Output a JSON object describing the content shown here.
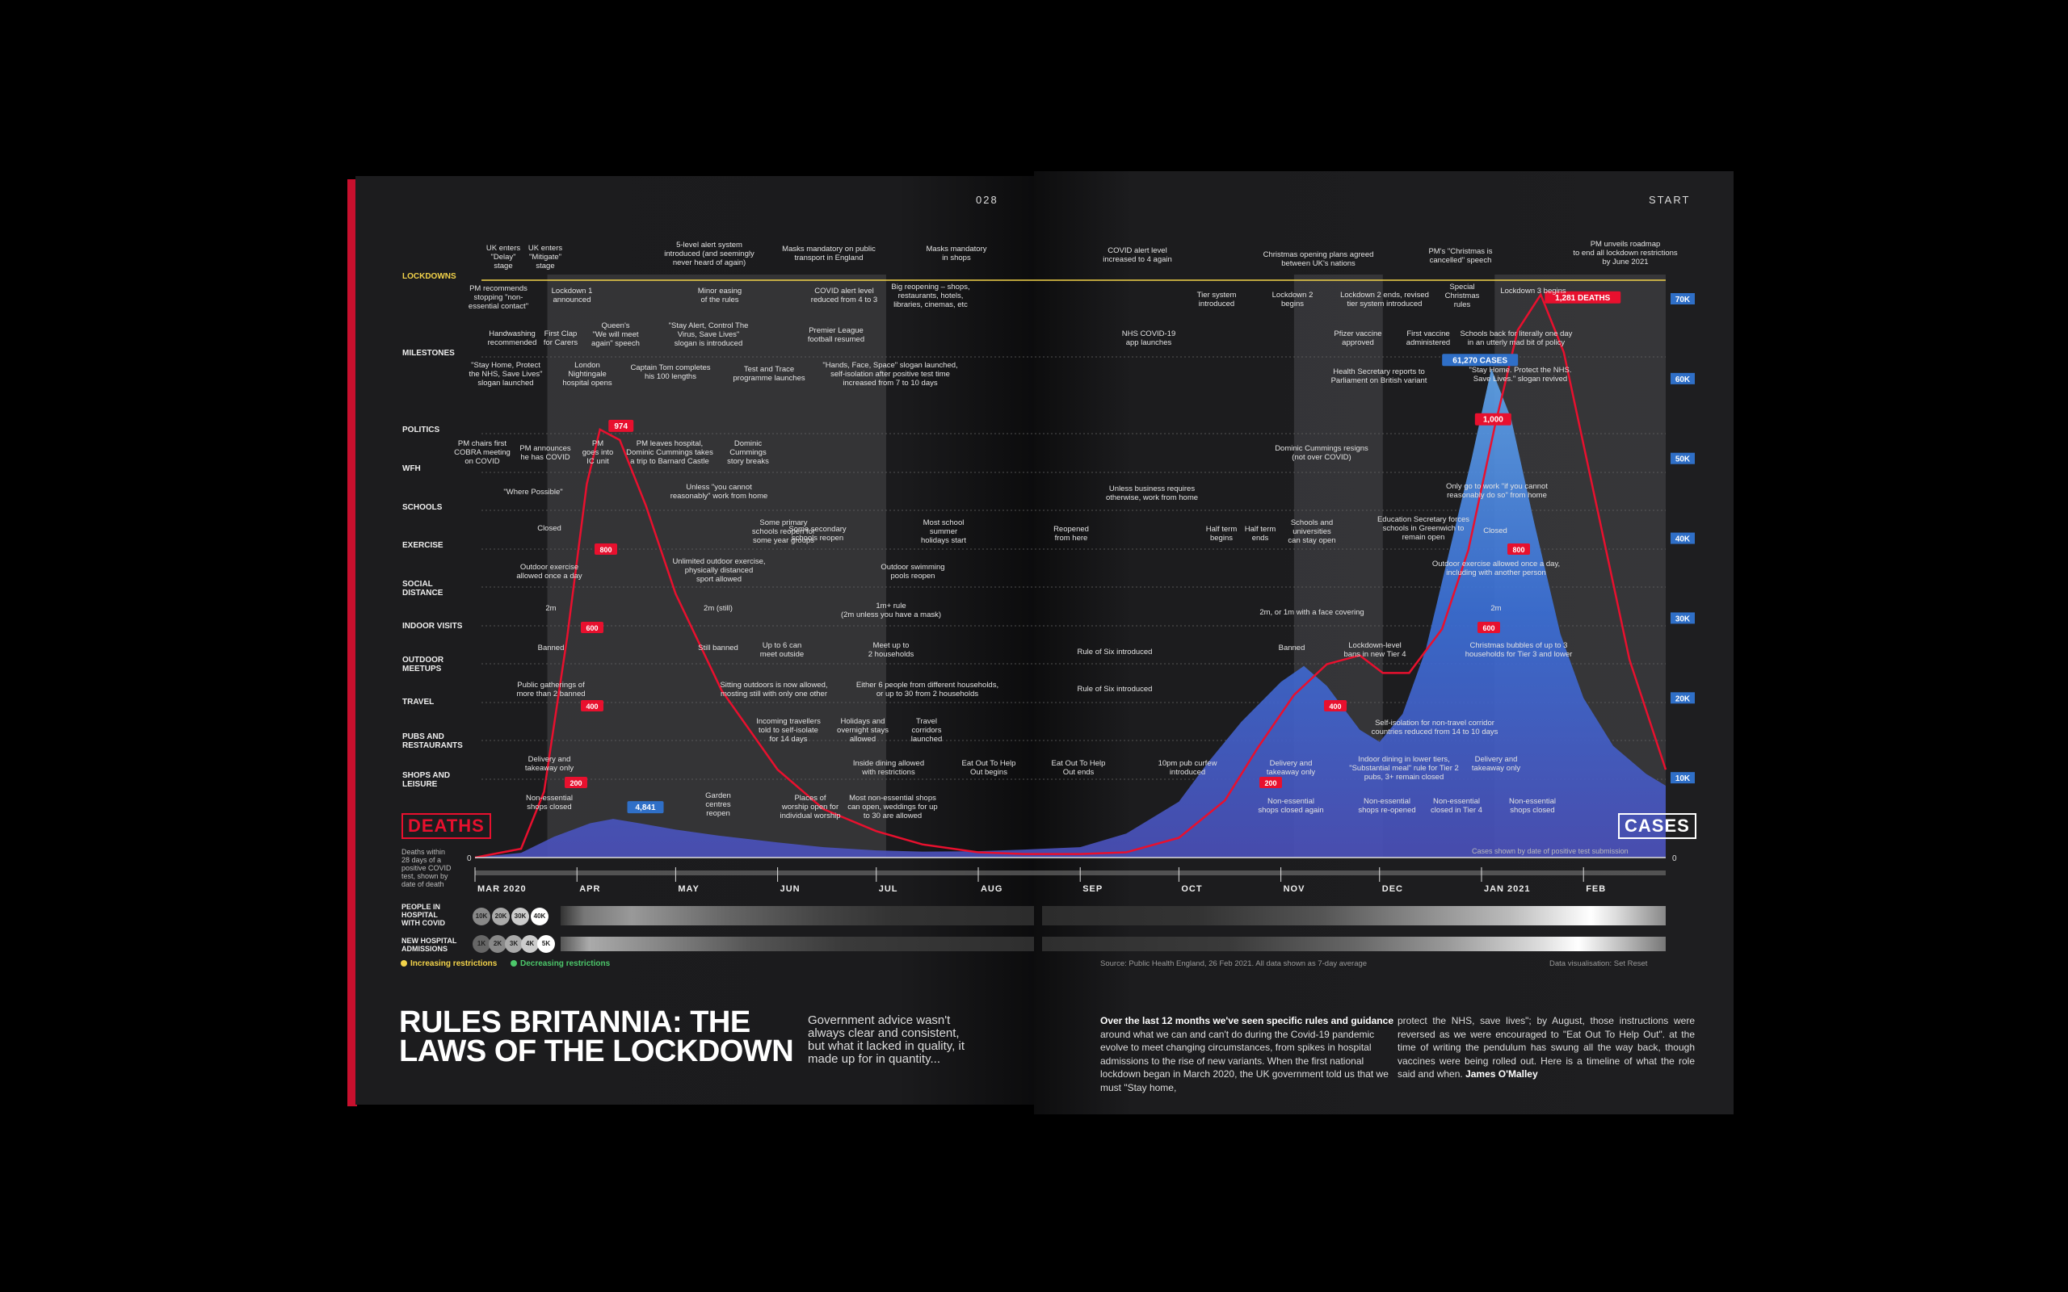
{
  "page_numbers": {
    "left": "028",
    "right": "START"
  },
  "row_labels": [
    {
      "text": "LOCKDOWNS",
      "highlight": true
    },
    {
      "text": "MILESTONES"
    },
    {
      "text": "POLITICS"
    },
    {
      "text": "WFH"
    },
    {
      "text": "SCHOOLS"
    },
    {
      "text": "EXERCISE"
    },
    {
      "text": "SOCIAL\nDISTANCE"
    },
    {
      "text": "INDOOR VISITS"
    },
    {
      "text": "OUTDOOR\nMEETUPS"
    },
    {
      "text": "TRAVEL"
    },
    {
      "text": "PUBS AND\nRESTAURANTS"
    },
    {
      "text": "SHOPS AND\nLEISURE"
    }
  ],
  "annotations": [
    {
      "text": "UK enters\n\"Delay\"\nstage"
    },
    {
      "text": "UK enters\n\"Mitigate\"\nstage"
    },
    {
      "text": "5-level alert system\nintroduced (and seemingly\nnever heard of again)"
    },
    {
      "text": "Masks mandatory on public\ntransport in England"
    },
    {
      "text": "Masks mandatory\nin shops"
    },
    {
      "text": "PM recommends\nstopping \"non-\nessential contact\""
    },
    {
      "text": "Lockdown 1\nannounced"
    },
    {
      "text": "Minor easing\nof the rules"
    },
    {
      "text": "COVID alert level\nreduced from 4 to 3"
    },
    {
      "text": "Big reopening – shops,\nrestaurants, hotels,\nlibraries, cinemas, etc"
    },
    {
      "text": "COVID alert level\nincreased to 4 again"
    },
    {
      "text": "Tier system\nintroduced"
    },
    {
      "text": "Christmas opening plans agreed\nbetween UK's nations"
    },
    {
      "text": "Lockdown 2\nbegins"
    },
    {
      "text": "Lockdown 2 ends, revised\ntier system introduced"
    },
    {
      "text": "PM's \"Christmas is\ncancelled\" speech"
    },
    {
      "text": "Special\nChristmas\nrules"
    },
    {
      "text": "Lockdown 3 begins"
    },
    {
      "text": "PM unveils roadmap\nto end all lockdown restrictions\nby June 2021"
    },
    {
      "text": "Handwashing\nrecommended"
    },
    {
      "text": "First Clap\nfor Carers"
    },
    {
      "text": "Queen's\n\"We will meet\nagain\" speech"
    },
    {
      "text": "\"Stay Alert, Control The\nVirus, Save Lives\"\nslogan is introduced"
    },
    {
      "text": "Premier League\nfootball resumed"
    },
    {
      "text": "\"Stay Home, Protect\nthe NHS, Save Lives\"\nslogan launched"
    },
    {
      "text": "London\nNightingale\nhospital opens"
    },
    {
      "text": "Captain Tom completes\nhis 100 lengths"
    },
    {
      "text": "Test and Trace\nprogramme launches"
    },
    {
      "text": "\"Hands, Face, Space\" slogan launched,\nself-isolation after positive test time\nincreased from 7 to 10 days"
    },
    {
      "text": "NHS COVID-19\napp launches"
    },
    {
      "text": "Pfizer vaccine\napproved"
    },
    {
      "text": "First vaccine\nadministered"
    },
    {
      "text": "Schools back for literally one day\nin an utterly mad bit of policy"
    },
    {
      "text": "Health Secretary reports to\nParliament on British variant"
    },
    {
      "text": "\"Stay Home. Protect the NHS.\nSave Lives.\" slogan revived"
    },
    {
      "text": "PM chairs first\nCOBRA meeting\non COVID"
    },
    {
      "text": "PM announces\nhe has COVID"
    },
    {
      "text": "PM\ngoes into\nIC unit"
    },
    {
      "text": "PM leaves hospital,\nDominic Cummings takes\na trip to Barnard Castle"
    },
    {
      "text": "Dominic\nCummings\nstory breaks"
    },
    {
      "text": "Dominic Cummings resigns\n(not over COVID)"
    },
    {
      "text": "\"Where Possible\""
    },
    {
      "text": "Unless \"you cannot\nreasonably\" work from home"
    },
    {
      "text": "Unless business requires\notherwise, work from home"
    },
    {
      "text": "Only go to work \"if you cannot\nreasonably do so\" from home"
    },
    {
      "text": "Closed"
    },
    {
      "text": "Some primary\nschools reopen for\nsome year groups"
    },
    {
      "text": "Some secondary\nschools reopen"
    },
    {
      "text": "Most school\nsummer\nholidays start"
    },
    {
      "text": "Reopened\nfrom here"
    },
    {
      "text": "Half term\nbegins"
    },
    {
      "text": "Half term\nends"
    },
    {
      "text": "Schools and\nuniversities\ncan stay open"
    },
    {
      "text": "Education Secretary forces\nschools in Greenwich to\nremain open"
    },
    {
      "text": "Closed"
    },
    {
      "text": "Outdoor exercise\nallowed once a day"
    },
    {
      "text": "Unlimited outdoor exercise,\nphysically distanced\nsport allowed"
    },
    {
      "text": "Outdoor swimming\npools reopen"
    },
    {
      "text": "Outdoor exercise allowed once a day,\nincluding with another person"
    },
    {
      "text": "2m"
    },
    {
      "text": "2m (still)"
    },
    {
      "text": "1m+ rule\n(2m unless you have a mask)"
    },
    {
      "text": "2m, or 1m with a face covering"
    },
    {
      "text": "2m"
    },
    {
      "text": "Banned"
    },
    {
      "text": "Still banned"
    },
    {
      "text": "Up to 6 can\nmeet outside"
    },
    {
      "text": "Meet up to\n2 households"
    },
    {
      "text": "Rule of Six introduced"
    },
    {
      "text": "Banned"
    },
    {
      "text": "Lockdown-level\nbans in new Tier 4"
    },
    {
      "text": "Christmas bubbles of up to 3\nhouseholds for Tier 3 and lower"
    },
    {
      "text": "Public gatherings of\nmore than 2 banned"
    },
    {
      "text": "Sitting outdoors is now allowed,\nmosting still with only one other"
    },
    {
      "text": "Either 6 people from different households,\nor up to 30 from 2 households"
    },
    {
      "text": "Rule of Six introduced"
    },
    {
      "text": "Incoming travellers\ntold to self-isolate\nfor 14 days"
    },
    {
      "text": "Holidays and\novernight stays\nallowed"
    },
    {
      "text": "Travel\ncorridors\nlaunched"
    },
    {
      "text": "Self-isolation for non-travel corridor\ncountries reduced from 14 to 10 days"
    },
    {
      "text": "Delivery and\ntakeaway only"
    },
    {
      "text": "Inside dining allowed\nwith restrictions"
    },
    {
      "text": "Eat Out To Help\nOut begins"
    },
    {
      "text": "Eat Out To Help\nOut ends"
    },
    {
      "text": "10pm pub curfew\nintroduced"
    },
    {
      "text": "Delivery and\ntakeaway only"
    },
    {
      "text": "Indoor dining in lower tiers,\n\"Substantial meal\" rule for Tier 2\npubs, 3+ remain closed"
    },
    {
      "text": "Delivery and\ntakeaway only"
    },
    {
      "text": "Non-essential\nshops closed"
    },
    {
      "text": "Garden\ncentres\nreopen"
    },
    {
      "text": "Places of\nworship open for\nindividual worship"
    },
    {
      "text": "Most non-essential shops\ncan open, weddings for up\nto 30 are allowed"
    },
    {
      "text": "Non-essential\nshops closed again"
    },
    {
      "text": "Non-essential\nshops re-opened"
    },
    {
      "text": "Non-essential\nclosed in Tier 4"
    },
    {
      "text": "Non-essential\nshops closed"
    }
  ],
  "tags": {
    "deaths": "DEATHS",
    "cases": "CASES"
  },
  "deaths_note": "Deaths within\n28 days of a\npositive COVID\ntest, shown by\ndate of death",
  "cases_note": "Cases shown by date of positive test submission",
  "hospital": {
    "people_label": "PEOPLE IN\nHOSPITAL\nWITH COVID",
    "people_keys": [
      "10K",
      "20K",
      "30K",
      "40K"
    ],
    "admissions_label": "NEW HOSPITAL\nADMISSIONS",
    "admissions_keys": [
      "1K",
      "2K",
      "3K",
      "4K",
      "5K"
    ]
  },
  "legend": {
    "increasing": "Increasing restrictions",
    "decreasing": "Decreasing restrictions",
    "increasing_color": "#f3d34a",
    "decreasing_color": "#4cc76a"
  },
  "source": "Source: Public Health England, 26 Feb 2021. All data shown as 7-day average",
  "credit": "Data visualisation: Set Reset",
  "headline": "RULES BRITANNIA: THE LAWS OF THE LOCKDOWN",
  "standfirst": "Government advice wasn't always clear and consistent, but what it lacked in quality, it made up for in quantity...",
  "body_col1_lead": "Over the last 12 months we've seen specific rules and guidance",
  "body_col1": "around what we can and can't do during the Covid-19 pandemic evolve to meet changing circumstances, from spikes in hospital admissions to the rise of new variants. When the first national lockdown began in March 2020, the UK government told us that we must \"Stay home,",
  "body_col2": "protect the NHS, save lives\"; by August, those instructions were reversed as we were encouraged to \"Eat Out To Help Out\". at the time of writing the pendulum has swung all the way back, though vaccines were being rolled out. Here is a timeline of what the role said and when.",
  "byline": "James O'Malley",
  "colors": {
    "deaths": "#e8102e",
    "cases": "#3b6fd6",
    "cases_peak": "#5fa3e8",
    "lockdown_band": "#8f8f90",
    "yellow": "#f3d34a",
    "green": "#4cc76a"
  },
  "chart_data": {
    "type": "area",
    "title": "",
    "x_months": [
      "MAR 2020",
      "APR",
      "MAY",
      "JUN",
      "JUL",
      "AUG",
      "SEP",
      "OCT",
      "NOV",
      "DEC",
      "JAN 2021",
      "FEB"
    ],
    "cases_axis": {
      "ticks": [
        "10K",
        "20K",
        "30K",
        "40K",
        "50K",
        "60K",
        "70K"
      ],
      "ylim": [
        0,
        70000
      ],
      "zero_label": "0"
    },
    "deaths_axis": {
      "ylim": [
        0,
        1400
      ],
      "zero_label": "0"
    },
    "deaths_labels": [
      {
        "t": "2020-04-08",
        "value": 974,
        "text": "974"
      },
      {
        "t": "2021-01-19",
        "value": 1281,
        "text": "1,281 DEATHS"
      },
      {
        "t": "2021-01-06",
        "value": 1000,
        "text": "1,000"
      }
    ],
    "level_badges": [
      "800",
      "600",
      "400",
      "200"
    ],
    "cases_labels": [
      {
        "t": "2020-04-12",
        "value": 4841,
        "text": "4,841"
      },
      {
        "t": "2021-01-04",
        "value": 61270,
        "text": "61,270 CASES"
      }
    ],
    "lockdown_periods": [
      [
        "2020-03-23",
        "2020-07-04"
      ],
      [
        "2020-11-05",
        "2020-12-02"
      ],
      [
        "2021-01-05",
        "2021-02-26"
      ]
    ],
    "series": [
      {
        "name": "Cases",
        "points": [
          [
            "2020-03-01",
            30
          ],
          [
            "2020-03-15",
            600
          ],
          [
            "2020-03-25",
            2600
          ],
          [
            "2020-04-05",
            4300
          ],
          [
            "2020-04-12",
            4841
          ],
          [
            "2020-04-20",
            4300
          ],
          [
            "2020-05-01",
            3500
          ],
          [
            "2020-05-15",
            2700
          ],
          [
            "2020-06-01",
            1900
          ],
          [
            "2020-06-15",
            1300
          ],
          [
            "2020-07-01",
            900
          ],
          [
            "2020-07-15",
            750
          ],
          [
            "2020-08-01",
            800
          ],
          [
            "2020-08-15",
            1000
          ],
          [
            "2020-09-01",
            1300
          ],
          [
            "2020-09-15",
            3000
          ],
          [
            "2020-10-01",
            7000
          ],
          [
            "2020-10-10",
            12000
          ],
          [
            "2020-10-20",
            17000
          ],
          [
            "2020-11-01",
            22000
          ],
          [
            "2020-11-08",
            24000
          ],
          [
            "2020-11-15",
            21500
          ],
          [
            "2020-11-25",
            16000
          ],
          [
            "2020-12-01",
            14500
          ],
          [
            "2020-12-08",
            18000
          ],
          [
            "2020-12-15",
            26000
          ],
          [
            "2020-12-22",
            38000
          ],
          [
            "2020-12-29",
            50000
          ],
          [
            "2021-01-04",
            61270
          ],
          [
            "2021-01-10",
            55000
          ],
          [
            "2021-01-17",
            42000
          ],
          [
            "2021-01-25",
            28000
          ],
          [
            "2021-02-01",
            20000
          ],
          [
            "2021-02-10",
            14000
          ],
          [
            "2021-02-20",
            10500
          ],
          [
            "2021-02-26",
            9000
          ]
        ]
      },
      {
        "name": "Deaths",
        "points": [
          [
            "2020-03-01",
            0
          ],
          [
            "2020-03-15",
            20
          ],
          [
            "2020-03-22",
            150
          ],
          [
            "2020-03-29",
            500
          ],
          [
            "2020-04-04",
            850
          ],
          [
            "2020-04-08",
            974
          ],
          [
            "2020-04-14",
            950
          ],
          [
            "2020-04-22",
            800
          ],
          [
            "2020-05-01",
            600
          ],
          [
            "2020-05-15",
            380
          ],
          [
            "2020-06-01",
            200
          ],
          [
            "2020-06-15",
            110
          ],
          [
            "2020-07-01",
            60
          ],
          [
            "2020-07-15",
            30
          ],
          [
            "2020-08-01",
            12
          ],
          [
            "2020-08-15",
            8
          ],
          [
            "2020-09-01",
            8
          ],
          [
            "2020-09-15",
            12
          ],
          [
            "2020-10-01",
            45
          ],
          [
            "2020-10-15",
            130
          ],
          [
            "2020-10-25",
            250
          ],
          [
            "2020-11-05",
            370
          ],
          [
            "2020-11-15",
            440
          ],
          [
            "2020-11-25",
            460
          ],
          [
            "2020-12-02",
            420
          ],
          [
            "2020-12-10",
            420
          ],
          [
            "2020-12-20",
            520
          ],
          [
            "2020-12-28",
            700
          ],
          [
            "2021-01-05",
            980
          ],
          [
            "2021-01-12",
            1200
          ],
          [
            "2021-01-19",
            1281
          ],
          [
            "2021-01-26",
            1150
          ],
          [
            "2021-02-05",
            800
          ],
          [
            "2021-02-15",
            450
          ],
          [
            "2021-02-26",
            200
          ]
        ]
      }
    ]
  }
}
